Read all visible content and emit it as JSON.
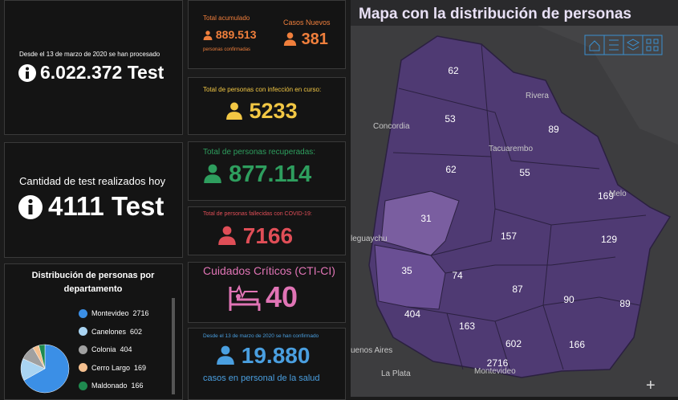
{
  "left": {
    "tests_total": {
      "caption": "Desde el 13 de marzo de 2020 se han procesado",
      "value": "6.022.372 Test"
    },
    "tests_today": {
      "caption": "Cantidad de test realizados hoy",
      "value": "4111 Test"
    },
    "distribution": {
      "title": "Distribución de personas por departamento",
      "legend": [
        {
          "name": "Montevideo",
          "value": 2716,
          "color": "#3b8fe6"
        },
        {
          "name": "Canelones",
          "value": 602,
          "color": "#a9d4f2"
        },
        {
          "name": "Colonia",
          "value": 404,
          "color": "#a0a0a0"
        },
        {
          "name": "Cerro Largo",
          "value": 169,
          "color": "#f5c08f"
        },
        {
          "name": "Maldonado",
          "value": 166,
          "color": "#1f8a4f"
        }
      ]
    }
  },
  "middle": {
    "accumulated": {
      "label": "Total acumulado",
      "value": "889.513",
      "note": "personas confirmadas"
    },
    "new_cases": {
      "label": "Casos Nuevos",
      "value": "381"
    },
    "active": {
      "label": "Total de personas con infección en curso:",
      "value": "5233"
    },
    "recovered": {
      "label": "Total de personas recuperadas:",
      "value": "877.114"
    },
    "deceased": {
      "label": "Total de personas fallecidas con COVID-19:",
      "value": "7166"
    },
    "critical": {
      "label": "Cuidados Críticos (CTI-CI)",
      "value": "40"
    },
    "health_staff": {
      "label": "Desde el 13 de marzo de 2020 se han confirmado",
      "value": "19.880",
      "note": "casos en personal de la salud"
    }
  },
  "map": {
    "title": "Mapa con la distribución de personas",
    "regions": [
      62,
      53,
      89,
      62,
      55,
      169,
      31,
      157,
      129,
      35,
      74,
      87,
      90,
      89,
      404,
      163,
      602,
      166,
      2716
    ],
    "places": [
      "Rivera",
      "Concordia",
      "Tacuarembo",
      "Melo",
      "leguaychu",
      "uenos Aires",
      "La Plata",
      "Montevideo"
    ]
  }
}
